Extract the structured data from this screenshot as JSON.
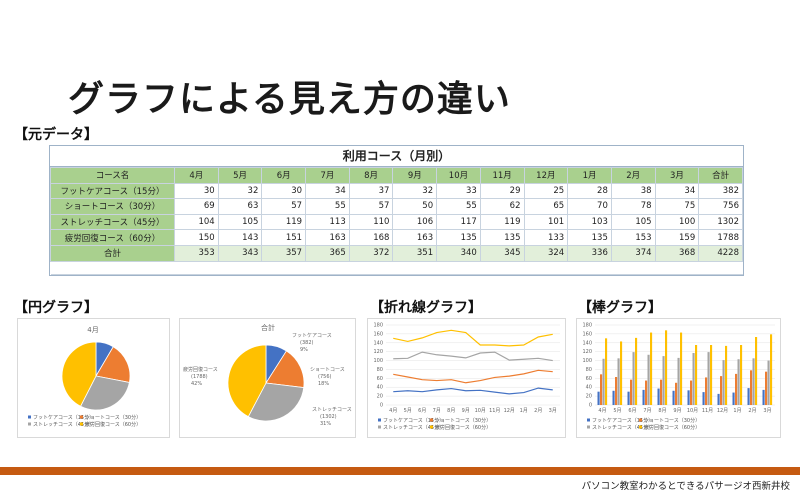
{
  "page": {
    "title": "グラフによる見え方の違い",
    "section_data": "【元データ】",
    "section_pie": "【円グラフ】",
    "section_line": "【折れ線グラフ】",
    "section_bar": "【棒グラフ】",
    "footer": "パソコン教室わかるとできるパサージオ西新井校"
  },
  "colors": {
    "header_green": "#a9d08e",
    "total_green": "#e2efda",
    "blue": "#4472c4",
    "orange": "#ed7d31",
    "gray": "#a5a5a5",
    "gold": "#ffc000",
    "footer_orange": "#c55a11"
  },
  "table": {
    "caption": "利用コース（月別）",
    "headers": [
      "コース名",
      "4月",
      "5月",
      "6月",
      "7月",
      "8月",
      "9月",
      "10月",
      "11月",
      "12月",
      "1月",
      "2月",
      "3月",
      "合計"
    ],
    "rows": [
      {
        "name": "フットケアコース（15分）",
        "values": [
          "30",
          "32",
          "30",
          "34",
          "37",
          "32",
          "33",
          "29",
          "25",
          "28",
          "38",
          "34",
          "382"
        ]
      },
      {
        "name": "ショートコース（30分）",
        "values": [
          "69",
          "63",
          "57",
          "55",
          "57",
          "50",
          "55",
          "62",
          "65",
          "70",
          "78",
          "75",
          "756"
        ]
      },
      {
        "name": "ストレッチコース（45分）",
        "values": [
          "104",
          "105",
          "119",
          "113",
          "110",
          "106",
          "117",
          "119",
          "101",
          "103",
          "105",
          "100",
          "1302"
        ]
      },
      {
        "name": "疲労回復コース（60分）",
        "values": [
          "150",
          "143",
          "151",
          "163",
          "168",
          "163",
          "135",
          "135",
          "133",
          "135",
          "153",
          "159",
          "1788"
        ]
      }
    ],
    "total": {
      "name": "合計",
      "values": [
        "353",
        "343",
        "357",
        "365",
        "372",
        "351",
        "340",
        "345",
        "324",
        "336",
        "374",
        "368",
        "4228"
      ]
    }
  },
  "chart_data": [
    {
      "type": "pie",
      "title": "4月",
      "categories": [
        "フットケアコース（15分）",
        "ショートコース（30分）",
        "ストレッチコース（45分）",
        "疲労回復コース（60分）"
      ],
      "values": [
        30,
        69,
        104,
        150
      ]
    },
    {
      "type": "pie",
      "title": "合計",
      "categories": [
        "フットケアコース",
        "ショートコース",
        "ストレッチコース",
        "疲労回復コース"
      ],
      "values": [
        382,
        756,
        1302,
        1788
      ],
      "data_labels": [
        {
          "name": "フットケアコース",
          "value": "(382)",
          "pct": "9%"
        },
        {
          "name": "ショートコース",
          "value": "(756)",
          "pct": "18%"
        },
        {
          "name": "ストレッチコース",
          "value": "(1302)",
          "pct": "31%"
        },
        {
          "name": "疲労回復コース",
          "value": "(1788)",
          "pct": "42%"
        }
      ]
    },
    {
      "type": "line",
      "title": "",
      "categories": [
        "4月",
        "5月",
        "6月",
        "7月",
        "8月",
        "9月",
        "10月",
        "11月",
        "12月",
        "1月",
        "2月",
        "3月"
      ],
      "ylim": [
        0,
        180
      ],
      "yticks": [
        "0",
        "20",
        "40",
        "60",
        "80",
        "100",
        "120",
        "140",
        "160",
        "180"
      ],
      "series": [
        {
          "name": "フットケアコース（15分）",
          "values": [
            30,
            32,
            30,
            34,
            37,
            32,
            33,
            29,
            25,
            28,
            38,
            34
          ]
        },
        {
          "name": "ショートコース（30分）",
          "values": [
            69,
            63,
            57,
            55,
            57,
            50,
            55,
            62,
            65,
            70,
            78,
            75
          ]
        },
        {
          "name": "ストレッチコース（45分）",
          "values": [
            104,
            105,
            119,
            113,
            110,
            106,
            117,
            119,
            101,
            103,
            105,
            100
          ]
        },
        {
          "name": "疲労回復コース（60分）",
          "values": [
            150,
            143,
            151,
            163,
            168,
            163,
            135,
            135,
            133,
            135,
            153,
            159
          ]
        }
      ]
    },
    {
      "type": "bar",
      "title": "",
      "categories": [
        "4月",
        "5月",
        "6月",
        "7月",
        "8月",
        "9月",
        "10月",
        "11月",
        "12月",
        "1月",
        "2月",
        "3月"
      ],
      "ylim": [
        0,
        180
      ],
      "yticks": [
        "0",
        "20",
        "40",
        "60",
        "80",
        "100",
        "120",
        "140",
        "160",
        "180"
      ],
      "series": [
        {
          "name": "フットケアコース（15分）",
          "values": [
            30,
            32,
            30,
            34,
            37,
            32,
            33,
            29,
            25,
            28,
            38,
            34
          ]
        },
        {
          "name": "ショートコース（30分）",
          "values": [
            69,
            63,
            57,
            55,
            57,
            50,
            55,
            62,
            65,
            70,
            78,
            75
          ]
        },
        {
          "name": "ストレッチコース（45分）",
          "values": [
            104,
            105,
            119,
            113,
            110,
            106,
            117,
            119,
            101,
            103,
            105,
            100
          ]
        },
        {
          "name": "疲労回復コース（60分）",
          "values": [
            150,
            143,
            151,
            163,
            168,
            163,
            135,
            135,
            133,
            135,
            153,
            159
          ]
        }
      ]
    }
  ]
}
